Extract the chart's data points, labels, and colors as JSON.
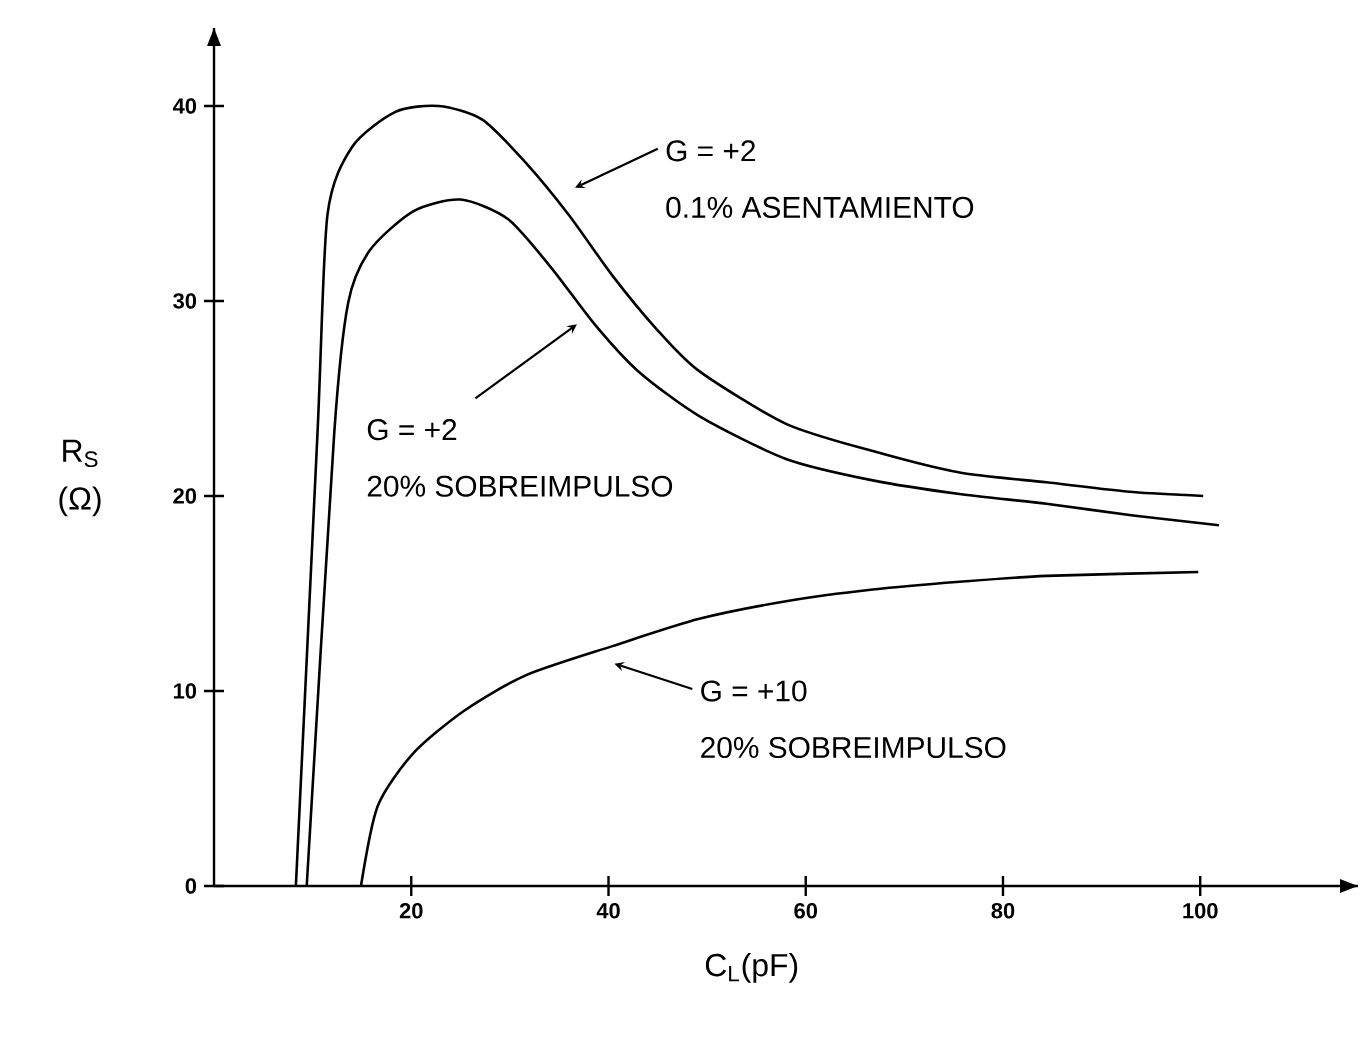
{
  "chart_data": {
    "type": "line",
    "xlabel": "C$_{L}$(pF)",
    "ylabel": "R$_{S}$ (Ω)",
    "xlim": [
      0,
      116
    ],
    "ylim": [
      0,
      44
    ],
    "xticks": [
      20,
      40,
      60,
      80,
      100
    ],
    "yticks": [
      0,
      10,
      20,
      30,
      40
    ],
    "grid": false,
    "series": [
      {
        "color": "#000000",
        "x": [
          8.3,
          10.5,
          11.5,
          14.0,
          18.4,
          22.8,
          27.2,
          31.6,
          36.0,
          40.4,
          44.8,
          49.2,
          58.0,
          66.8,
          75.6,
          84.4,
          93.2,
          100.3
        ],
        "values": [
          0,
          23.3,
          34.4,
          37.9,
          39.7,
          40,
          39.3,
          37.1,
          34.4,
          31.3,
          28.6,
          26.4,
          23.7,
          22.3,
          21.2,
          20.7,
          20.2,
          20.0
        ]
      },
      {
        "color": "#000000",
        "x": [
          9.4,
          12.2,
          13.6,
          15.8,
          20.2,
          25.0,
          29.8,
          34.2,
          38.6,
          43.0,
          49.2,
          58.0,
          66.8,
          75.6,
          84.4,
          93.2,
          101.9
        ],
        "values": [
          0,
          23.3,
          29.9,
          32.6,
          34.6,
          35.2,
          34.2,
          31.7,
          28.8,
          26.4,
          24.1,
          21.9,
          20.8,
          20.1,
          19.6,
          19.0,
          18.5
        ]
      },
      {
        "color": "#000000",
        "x": [
          14.9,
          16.6,
          20.2,
          25.4,
          31.6,
          40.4,
          49.2,
          58.0,
          66.8,
          75.6,
          84.4,
          99.8
        ],
        "values": [
          0,
          4.1,
          6.8,
          9.0,
          10.8,
          12.3,
          13.7,
          14.6,
          15.2,
          15.6,
          15.9,
          16.1
        ]
      }
    ],
    "annotations": [
      "G = +2",
      "0.1% ASENTAMIENTO",
      "G = +2",
      "20% SOBREIMPULSO",
      "G = +10",
      "20% SOBREIMPULSO"
    ]
  }
}
